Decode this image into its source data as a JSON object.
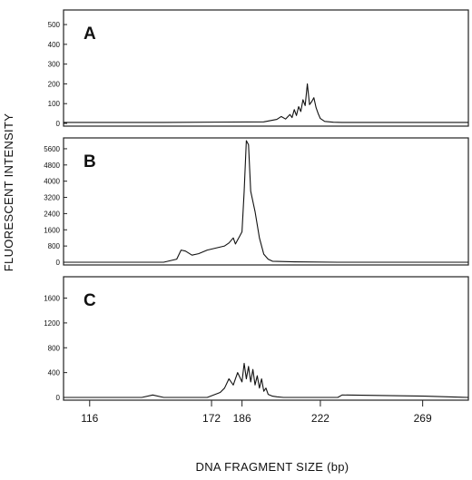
{
  "chart_data": {
    "type": "line",
    "ylabel": "FLUORESCENT INTENSITY",
    "xlabel": "DNA FRAGMENT SIZE (bp)",
    "x_ticks": [
      116,
      172,
      186,
      222,
      269
    ],
    "xlim": [
      104,
      290
    ],
    "panels": [
      {
        "label": "A",
        "y_ticks": [
          0,
          100,
          200,
          300,
          400,
          500
        ],
        "ylim": [
          0,
          560
        ],
        "x": [
          104,
          150,
          196,
          202,
          204,
          206,
          208,
          209,
          210,
          211,
          212,
          213,
          214,
          215,
          216,
          217,
          218,
          219,
          220,
          221,
          222,
          224,
          228,
          232,
          236,
          260,
          290
        ],
        "values": [
          5,
          5,
          8,
          20,
          35,
          22,
          45,
          30,
          70,
          40,
          85,
          60,
          120,
          90,
          200,
          95,
          110,
          130,
          80,
          50,
          25,
          10,
          6,
          5,
          5,
          5,
          5
        ]
      },
      {
        "label": "B",
        "y_ticks": [
          0,
          800,
          1600,
          2400,
          3200,
          4000,
          4800,
          5600
        ],
        "ylim": [
          0,
          6000
        ],
        "x": [
          104,
          150,
          156,
          158,
          160,
          163,
          166,
          170,
          174,
          178,
          180,
          182,
          183,
          184,
          185,
          186,
          187,
          188,
          189,
          190,
          192,
          194,
          196,
          198,
          200,
          210,
          230,
          290
        ],
        "values": [
          0,
          0,
          150,
          600,
          550,
          350,
          420,
          600,
          700,
          800,
          950,
          1200,
          900,
          1100,
          1300,
          1500,
          3500,
          6000,
          5800,
          3500,
          2500,
          1200,
          400,
          150,
          50,
          20,
          0,
          0
        ]
      },
      {
        "label": "C",
        "y_ticks": [
          0,
          400,
          800,
          1200,
          1600
        ],
        "ylim": [
          0,
          1900
        ],
        "x": [
          104,
          140,
          145,
          150,
          170,
          176,
          178,
          180,
          182,
          184,
          186,
          187,
          188,
          189,
          190,
          191,
          192,
          193,
          194,
          195,
          196,
          197,
          198,
          200,
          202,
          205,
          210,
          230,
          232,
          270,
          290
        ],
        "values": [
          0,
          0,
          40,
          0,
          0,
          80,
          150,
          300,
          200,
          400,
          250,
          550,
          300,
          500,
          250,
          450,
          200,
          350,
          150,
          300,
          100,
          150,
          50,
          20,
          10,
          0,
          0,
          0,
          40,
          20,
          0
        ]
      }
    ]
  }
}
